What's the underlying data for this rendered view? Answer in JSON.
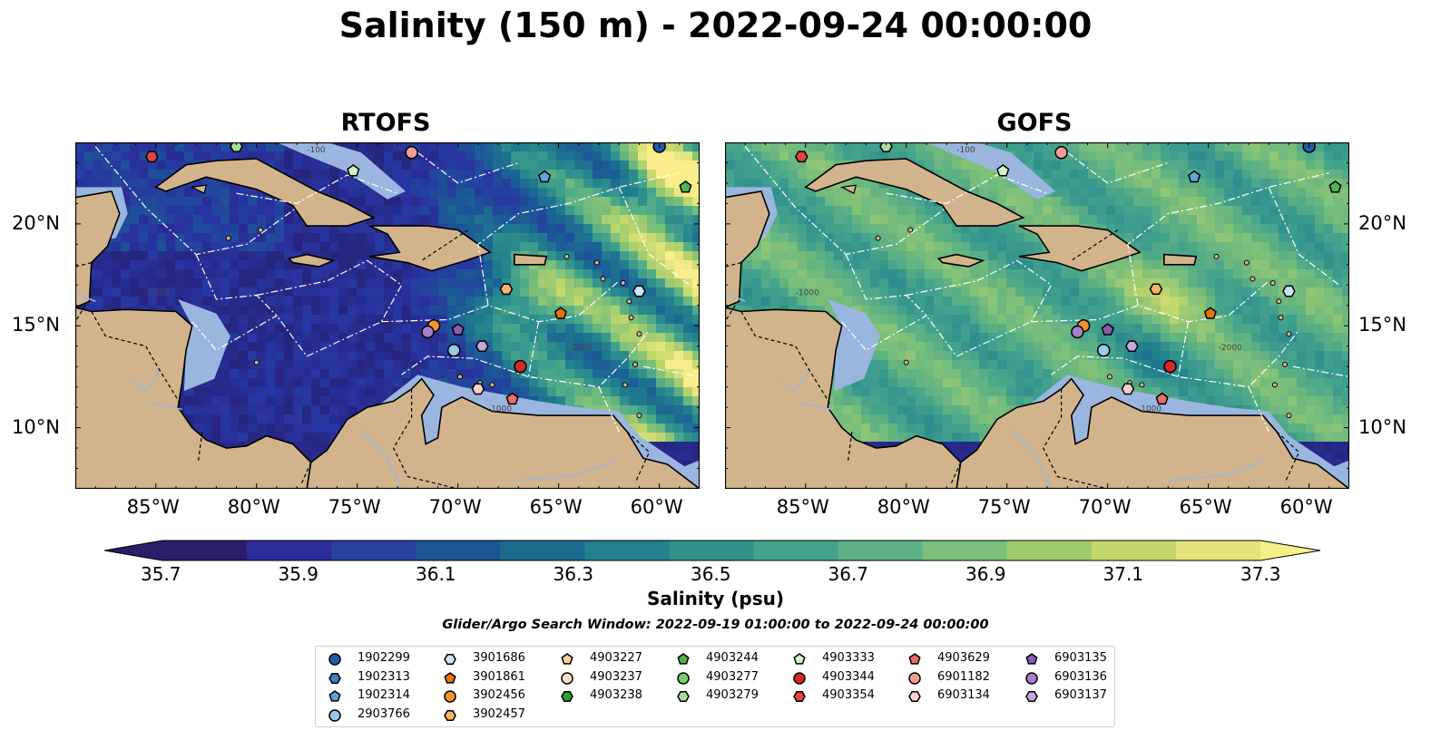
{
  "title": "Salinity (150 m) - 2022-09-24 00:00:00",
  "maps": [
    {
      "title": "RTOFS",
      "colormap_note": "mostly 35.7-36.5 west, 36.7-37.3+ eddies east"
    },
    {
      "title": "GOFS"
    }
  ],
  "axes": {
    "lon_ticks": [
      "85°W",
      "80°W",
      "75°W",
      "70°W",
      "65°W",
      "60°W"
    ],
    "lat_ticks": [
      "20°N",
      "15°N",
      "10°N"
    ],
    "lon_range": [
      -89,
      -58
    ],
    "lat_range": [
      7,
      24
    ]
  },
  "contour_labels": [
    "-1000",
    "-100",
    "-2000",
    "-1000"
  ],
  "colorbar": {
    "ticks": [
      "35.7",
      "35.9",
      "36.1",
      "36.3",
      "36.5",
      "36.7",
      "36.9",
      "37.1",
      "37.3"
    ],
    "label": "Salinity (psu)",
    "extend": "both",
    "colors": [
      "#2c1d6a",
      "#2b2b9a",
      "#29409e",
      "#1d5694",
      "#1c6a8e",
      "#24808c",
      "#2f938c",
      "#44a38c",
      "#5db187",
      "#7cbf7a",
      "#9fcb6a",
      "#c3d76c",
      "#e6e27c"
    ]
  },
  "search_window": "Glider/Argo Search Window: 2022-09-19 01:00:00 to 2022-09-24 00:00:00",
  "legend": [
    {
      "id": "1902299",
      "marker": "circle",
      "color": "#1f5fa8"
    },
    {
      "id": "1902313",
      "marker": "hexagon",
      "color": "#3a7fc0"
    },
    {
      "id": "1902314",
      "marker": "pentagon",
      "color": "#5ea3da"
    },
    {
      "id": "2903766",
      "marker": "circle",
      "color": "#9cc8ec"
    },
    {
      "id": "3901686",
      "marker": "hexagon",
      "color": "#c8e4f8"
    },
    {
      "id": "3901861",
      "marker": "pentagon",
      "color": "#e8730e"
    },
    {
      "id": "3902456",
      "marker": "circle",
      "color": "#f3922e"
    },
    {
      "id": "3902457",
      "marker": "hexagon",
      "color": "#f8b266"
    },
    {
      "id": "4903227",
      "marker": "pentagon",
      "color": "#fbcf9a"
    },
    {
      "id": "4903237",
      "marker": "circle",
      "color": "#fde3c6"
    },
    {
      "id": "4903238",
      "marker": "hexagon",
      "color": "#2e9e30"
    },
    {
      "id": "4903244",
      "marker": "pentagon",
      "color": "#4fb54a"
    },
    {
      "id": "4903277",
      "marker": "circle",
      "color": "#7ccc6f"
    },
    {
      "id": "4903279",
      "marker": "hexagon",
      "color": "#a7e09a"
    },
    {
      "id": "4903333",
      "marker": "pentagon",
      "color": "#d1f2c8"
    },
    {
      "id": "4903344",
      "marker": "circle",
      "color": "#d62728"
    },
    {
      "id": "4903354",
      "marker": "hexagon",
      "color": "#e0463f"
    },
    {
      "id": "4903629",
      "marker": "pentagon",
      "color": "#eb6d67"
    },
    {
      "id": "6901182",
      "marker": "circle",
      "color": "#f29d97"
    },
    {
      "id": "6903134",
      "marker": "hexagon",
      "color": "#fbd1cd"
    },
    {
      "id": "6903135",
      "marker": "pentagon",
      "color": "#8a5bb0"
    },
    {
      "id": "6903136",
      "marker": "circle",
      "color": "#a77fcb"
    },
    {
      "id": "6903137",
      "marker": "hexagon",
      "color": "#c6a8e0"
    }
  ],
  "observations": [
    {
      "id": "1902299",
      "lon": -60.0,
      "lat": 23.8
    },
    {
      "id": "3901861",
      "lon": -64.9,
      "lat": 15.6
    },
    {
      "id": "3902456",
      "lon": -71.2,
      "lat": 15.0
    },
    {
      "id": "3902457",
      "lon": -67.6,
      "lat": 16.8
    },
    {
      "id": "4903244",
      "lon": -58.7,
      "lat": 21.8
    },
    {
      "id": "4903333",
      "lon": -75.2,
      "lat": 22.6
    },
    {
      "id": "4903279",
      "lon": -81.0,
      "lat": 23.8
    },
    {
      "id": "4903344",
      "lon": -66.9,
      "lat": 13.0
    },
    {
      "id": "4903354",
      "lon": -85.2,
      "lat": 23.3
    },
    {
      "id": "4903629",
      "lon": -67.3,
      "lat": 11.4
    },
    {
      "id": "6901182",
      "lon": -72.3,
      "lat": 23.5
    },
    {
      "id": "6903134",
      "lon": -69.0,
      "lat": 11.9
    },
    {
      "id": "6903135",
      "lon": -70.0,
      "lat": 14.8
    },
    {
      "id": "6903136",
      "lon": -71.5,
      "lat": 14.7
    },
    {
      "id": "6903137",
      "lon": -68.8,
      "lat": 14.0
    },
    {
      "id": "2903766",
      "lon": -70.2,
      "lat": 13.8
    },
    {
      "id": "3901686",
      "lon": -61.0,
      "lat": 16.7
    },
    {
      "id": "1902314",
      "lon": -65.7,
      "lat": 22.3
    }
  ]
}
